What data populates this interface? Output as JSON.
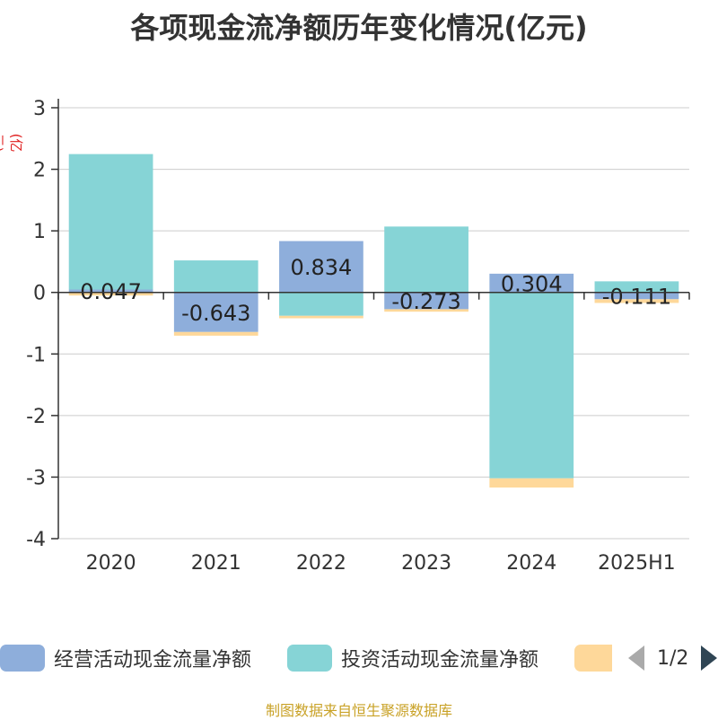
{
  "title": "各项现金流净额历年变化情况(亿元)",
  "y_unit": "(亿元)",
  "source": "制图数据来自恒生聚源数据库",
  "legend": {
    "items": [
      {
        "label": "经营活动现金流量净额",
        "color": "#8eaedb"
      },
      {
        "label": "投资活动现金流量净额",
        "color": "#86d4d6"
      },
      {
        "label": "",
        "color": "#fed89a"
      }
    ],
    "page": "1/2"
  },
  "chart_data": {
    "type": "bar",
    "stacked": true,
    "categories": [
      "2020",
      "2021",
      "2022",
      "2023",
      "2024",
      "2025H1"
    ],
    "ylim": [
      -4,
      3
    ],
    "yticks": [
      3,
      2,
      1,
      0,
      -1,
      -2,
      -3,
      -4
    ],
    "grid": true,
    "legend_position": "bottom",
    "series": [
      {
        "name": "经营活动现金流量净额",
        "color": "#8eaedb",
        "values": [
          0.047,
          -0.643,
          0.834,
          -0.273,
          0.304,
          -0.111
        ],
        "labels": [
          "0.047",
          "-0.643",
          "0.834",
          "-0.273",
          "0.304",
          "-0.111"
        ]
      },
      {
        "name": "投资活动现金流量净额",
        "color": "#86d4d6",
        "values": [
          2.2,
          0.52,
          -0.38,
          1.07,
          -3.02,
          0.18
        ]
      },
      {
        "name": "",
        "color": "#fed89a",
        "values": [
          -0.05,
          -0.06,
          -0.04,
          -0.04,
          -0.15,
          -0.06
        ]
      }
    ]
  }
}
